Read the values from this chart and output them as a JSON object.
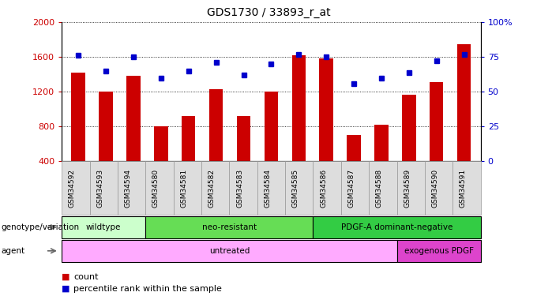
{
  "title": "GDS1730 / 33893_r_at",
  "samples": [
    "GSM34592",
    "GSM34593",
    "GSM34594",
    "GSM34580",
    "GSM34581",
    "GSM34582",
    "GSM34583",
    "GSM34584",
    "GSM34585",
    "GSM34586",
    "GSM34587",
    "GSM34588",
    "GSM34589",
    "GSM34590",
    "GSM34591"
  ],
  "counts": [
    1420,
    1200,
    1380,
    800,
    920,
    1230,
    920,
    1200,
    1620,
    1580,
    700,
    820,
    1170,
    1310,
    1750
  ],
  "percentile_ranks": [
    76,
    65,
    75,
    60,
    65,
    71,
    62,
    70,
    77,
    75,
    56,
    60,
    64,
    72,
    77
  ],
  "ylim_left": [
    400,
    2000
  ],
  "ylim_right": [
    0,
    100
  ],
  "yticks_left": [
    400,
    800,
    1200,
    1600,
    2000
  ],
  "yticks_right": [
    0,
    25,
    50,
    75,
    100
  ],
  "bar_color": "#cc0000",
  "dot_color": "#0000cc",
  "bar_width": 0.5,
  "genotype_groups": [
    {
      "label": "wildtype",
      "start": 0,
      "end": 3,
      "color": "#ccffcc"
    },
    {
      "label": "neo-resistant",
      "start": 3,
      "end": 9,
      "color": "#66dd55"
    },
    {
      "label": "PDGF-A dominant-negative",
      "start": 9,
      "end": 15,
      "color": "#33cc44"
    }
  ],
  "agent_groups": [
    {
      "label": "untreated",
      "start": 0,
      "end": 12,
      "color": "#ffaaff"
    },
    {
      "label": "exogenous PDGF",
      "start": 12,
      "end": 15,
      "color": "#dd44cc"
    }
  ],
  "genotype_label": "genotype/variation",
  "agent_label": "agent",
  "legend_count_label": "count",
  "legend_pct_label": "percentile rank within the sample",
  "bar_legend_color": "#cc0000",
  "dot_legend_color": "#0000cc"
}
